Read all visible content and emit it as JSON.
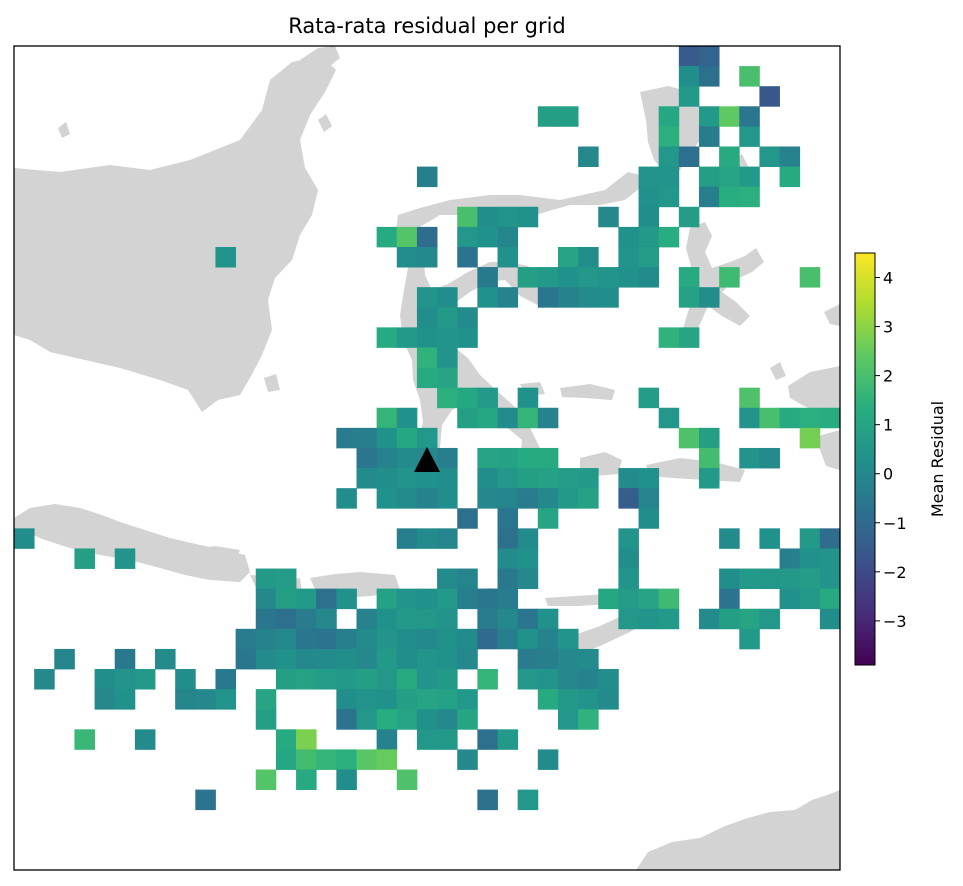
{
  "map": {
    "title": "Rata-rata residual per grid",
    "land_color": "#d3d3d3",
    "marker": "black-triangle",
    "colormap": "viridis"
  },
  "colorbar": {
    "label": "Mean Residual",
    "min": -3.9,
    "max": 4.5,
    "ticks": [
      {
        "value": -3,
        "label": "−3"
      },
      {
        "value": -2,
        "label": "−2"
      },
      {
        "value": -1,
        "label": "−1"
      },
      {
        "value": 0,
        "label": "0"
      },
      {
        "value": 1,
        "label": "1"
      },
      {
        "value": 2,
        "label": "2"
      },
      {
        "value": 3,
        "label": "3"
      },
      {
        "value": 4,
        "label": "4"
      }
    ]
  },
  "grid": {
    "cols": 41,
    "rows": 41,
    "cells": [
      [
        33,
        0,
        -1.5
      ],
      [
        34,
        0,
        -1.2
      ],
      [
        33,
        1,
        0.2
      ],
      [
        34,
        1,
        -0.8
      ],
      [
        36,
        1,
        2.0
      ],
      [
        33,
        2,
        0.6
      ],
      [
        37,
        2,
        -1.6
      ],
      [
        26,
        3,
        0.8
      ],
      [
        27,
        3,
        0.8
      ],
      [
        32,
        3,
        1.1
      ],
      [
        34,
        3,
        0.6
      ],
      [
        35,
        3,
        2.4
      ],
      [
        36,
        3,
        -0.6
      ],
      [
        32,
        4,
        1.4
      ],
      [
        34,
        4,
        -0.4
      ],
      [
        36,
        4,
        0.5
      ],
      [
        28,
        5,
        0.0
      ],
      [
        32,
        5,
        0.5
      ],
      [
        33,
        5,
        -0.8
      ],
      [
        35,
        5,
        1.2
      ],
      [
        37,
        5,
        0.5
      ],
      [
        38,
        5,
        -0.2
      ],
      [
        20,
        6,
        -0.3
      ],
      [
        31,
        6,
        0.4
      ],
      [
        32,
        6,
        0.4
      ],
      [
        34,
        6,
        0.8
      ],
      [
        35,
        6,
        1.0
      ],
      [
        36,
        6,
        0.6
      ],
      [
        38,
        6,
        1.2
      ],
      [
        31,
        7,
        0.3
      ],
      [
        32,
        7,
        0.5
      ],
      [
        34,
        7,
        -0.3
      ],
      [
        35,
        7,
        1.3
      ],
      [
        36,
        7,
        1.4
      ],
      [
        22,
        8,
        2.0
      ],
      [
        23,
        8,
        0.2
      ],
      [
        24,
        8,
        0.4
      ],
      [
        25,
        8,
        0.3
      ],
      [
        29,
        8,
        0.0
      ],
      [
        31,
        8,
        0.2
      ],
      [
        33,
        8,
        0.7
      ],
      [
        18,
        9,
        1.2
      ],
      [
        19,
        9,
        2.2
      ],
      [
        20,
        9,
        -0.9
      ],
      [
        22,
        9,
        0.5
      ],
      [
        23,
        9,
        0.3
      ],
      [
        24,
        9,
        -0.1
      ],
      [
        30,
        9,
        0.3
      ],
      [
        31,
        9,
        0.6
      ],
      [
        32,
        9,
        1.3
      ],
      [
        10,
        10,
        0.4
      ],
      [
        19,
        10,
        0.2
      ],
      [
        20,
        10,
        0.0
      ],
      [
        22,
        10,
        -0.7
      ],
      [
        24,
        10,
        0.3
      ],
      [
        27,
        10,
        1.0
      ],
      [
        28,
        10,
        0.2
      ],
      [
        30,
        10,
        0.4
      ],
      [
        31,
        10,
        0.7
      ],
      [
        23,
        11,
        -0.5
      ],
      [
        25,
        11,
        0.8
      ],
      [
        26,
        11,
        0.6
      ],
      [
        27,
        11,
        0.3
      ],
      [
        28,
        11,
        0.5
      ],
      [
        29,
        11,
        0.4
      ],
      [
        30,
        11,
        0.3
      ],
      [
        31,
        11,
        0.1
      ],
      [
        33,
        11,
        1.2
      ],
      [
        35,
        11,
        1.8
      ],
      [
        39,
        11,
        2.0
      ],
      [
        20,
        12,
        0.4
      ],
      [
        21,
        12,
        0.2
      ],
      [
        23,
        12,
        0.3
      ],
      [
        24,
        12,
        -0.2
      ],
      [
        26,
        12,
        -0.6
      ],
      [
        27,
        12,
        -0.2
      ],
      [
        28,
        12,
        0.1
      ],
      [
        29,
        12,
        0.2
      ],
      [
        33,
        12,
        0.9
      ],
      [
        34,
        12,
        0.2
      ],
      [
        20,
        13,
        0.2
      ],
      [
        21,
        13,
        0.6
      ],
      [
        22,
        13,
        0.1
      ],
      [
        18,
        14,
        1.2
      ],
      [
        19,
        14,
        0.6
      ],
      [
        20,
        14,
        0.3
      ],
      [
        21,
        14,
        0.4
      ],
      [
        22,
        14,
        0.3
      ],
      [
        32,
        14,
        1.5
      ],
      [
        33,
        14,
        1.0
      ],
      [
        20,
        15,
        1.5
      ],
      [
        21,
        15,
        0.4
      ],
      [
        20,
        16,
        1.2
      ],
      [
        21,
        16,
        1.0
      ],
      [
        21,
        17,
        1.4
      ],
      [
        22,
        17,
        1.1
      ],
      [
        23,
        17,
        0.6
      ],
      [
        25,
        17,
        0.3
      ],
      [
        31,
        17,
        0.7
      ],
      [
        36,
        17,
        2.1
      ],
      [
        18,
        18,
        1.6
      ],
      [
        19,
        18,
        0.3
      ],
      [
        22,
        18,
        0.8
      ],
      [
        23,
        18,
        1.1
      ],
      [
        24,
        18,
        0.1
      ],
      [
        25,
        18,
        1.6
      ],
      [
        26,
        18,
        -0.2
      ],
      [
        32,
        18,
        0.5
      ],
      [
        36,
        18,
        0.4
      ],
      [
        37,
        18,
        2.0
      ],
      [
        38,
        18,
        1.2
      ],
      [
        39,
        18,
        1.4
      ],
      [
        40,
        18,
        1.3
      ],
      [
        16,
        19,
        -0.4
      ],
      [
        17,
        19,
        -0.3
      ],
      [
        18,
        19,
        0.3
      ],
      [
        19,
        19,
        1.1
      ],
      [
        20,
        19,
        0.5
      ],
      [
        33,
        19,
        2.1
      ],
      [
        34,
        19,
        0.8
      ],
      [
        39,
        19,
        2.7
      ],
      [
        17,
        20,
        -0.6
      ],
      [
        18,
        20,
        -0.2
      ],
      [
        19,
        20,
        0.1
      ],
      [
        20,
        20,
        0.0
      ],
      [
        21,
        20,
        -0.3
      ],
      [
        23,
        20,
        1.0
      ],
      [
        24,
        20,
        0.9
      ],
      [
        25,
        20,
        1.2
      ],
      [
        26,
        20,
        1.2
      ],
      [
        34,
        20,
        1.9
      ],
      [
        36,
        20,
        0.4
      ],
      [
        37,
        20,
        0.1
      ],
      [
        17,
        21,
        0.1
      ],
      [
        18,
        21,
        0.2
      ],
      [
        19,
        21,
        0.4
      ],
      [
        20,
        21,
        0.3
      ],
      [
        21,
        21,
        0.2
      ],
      [
        23,
        21,
        0.2
      ],
      [
        24,
        21,
        0.5
      ],
      [
        25,
        21,
        0.8
      ],
      [
        26,
        21,
        0.9
      ],
      [
        27,
        21,
        0.7
      ],
      [
        28,
        21,
        0.6
      ],
      [
        30,
        21,
        0.1
      ],
      [
        31,
        21,
        0.3
      ],
      [
        34,
        21,
        0.6
      ],
      [
        16,
        22,
        0.2
      ],
      [
        18,
        22,
        0.3
      ],
      [
        19,
        22,
        0.1
      ],
      [
        20,
        22,
        -0.2
      ],
      [
        21,
        22,
        0.2
      ],
      [
        23,
        22,
        0.0
      ],
      [
        24,
        22,
        -0.1
      ],
      [
        25,
        22,
        -0.4
      ],
      [
        26,
        22,
        0.0
      ],
      [
        27,
        22,
        0.6
      ],
      [
        28,
        22,
        0.9
      ],
      [
        30,
        22,
        -1.4
      ],
      [
        31,
        22,
        -0.1
      ],
      [
        22,
        23,
        -0.8
      ],
      [
        24,
        23,
        -0.6
      ],
      [
        26,
        23,
        1.0
      ],
      [
        31,
        23,
        0.2
      ],
      [
        0,
        24,
        0.2
      ],
      [
        19,
        24,
        -0.3
      ],
      [
        20,
        24,
        0.1
      ],
      [
        21,
        24,
        -0.1
      ],
      [
        24,
        24,
        -0.8
      ],
      [
        25,
        24,
        0.1
      ],
      [
        30,
        24,
        0.4
      ],
      [
        35,
        24,
        0.1
      ],
      [
        37,
        24,
        0.3
      ],
      [
        39,
        24,
        0.6
      ],
      [
        40,
        24,
        -0.9
      ],
      [
        3,
        25,
        0.8
      ],
      [
        5,
        25,
        0.4
      ],
      [
        24,
        25,
        0.1
      ],
      [
        25,
        25,
        0.3
      ],
      [
        30,
        25,
        0.2
      ],
      [
        38,
        25,
        -0.3
      ],
      [
        39,
        25,
        0.3
      ],
      [
        40,
        25,
        0.4
      ],
      [
        12,
        26,
        0.6
      ],
      [
        13,
        26,
        0.7
      ],
      [
        21,
        26,
        0.1
      ],
      [
        22,
        26,
        -0.1
      ],
      [
        24,
        26,
        -0.5
      ],
      [
        25,
        26,
        0.0
      ],
      [
        30,
        26,
        0.4
      ],
      [
        35,
        26,
        0.2
      ],
      [
        36,
        26,
        0.6
      ],
      [
        37,
        26,
        0.5
      ],
      [
        38,
        26,
        0.6
      ],
      [
        39,
        26,
        0.7
      ],
      [
        40,
        26,
        0.4
      ],
      [
        12,
        27,
        0.0
      ],
      [
        13,
        27,
        0.8
      ],
      [
        14,
        27,
        0.6
      ],
      [
        15,
        27,
        -0.8
      ],
      [
        16,
        27,
        0.3
      ],
      [
        18,
        27,
        0.9
      ],
      [
        19,
        27,
        0.4
      ],
      [
        20,
        27,
        0.3
      ],
      [
        21,
        27,
        0.6
      ],
      [
        22,
        27,
        -0.3
      ],
      [
        23,
        27,
        -0.6
      ],
      [
        24,
        27,
        -0.4
      ],
      [
        29,
        27,
        1.1
      ],
      [
        30,
        27,
        0.7
      ],
      [
        31,
        27,
        1.0
      ],
      [
        32,
        27,
        1.8
      ],
      [
        35,
        27,
        -0.7
      ],
      [
        38,
        27,
        0.3
      ],
      [
        39,
        27,
        0.6
      ],
      [
        40,
        27,
        1.2
      ],
      [
        12,
        28,
        -0.6
      ],
      [
        13,
        28,
        -0.8
      ],
      [
        14,
        28,
        -0.4
      ],
      [
        15,
        28,
        0.0
      ],
      [
        17,
        28,
        -0.2
      ],
      [
        18,
        28,
        0.3
      ],
      [
        19,
        28,
        0.6
      ],
      [
        20,
        28,
        0.5
      ],
      [
        21,
        28,
        0.4
      ],
      [
        23,
        28,
        -0.4
      ],
      [
        24,
        28,
        0.0
      ],
      [
        25,
        28,
        -0.6
      ],
      [
        26,
        28,
        0.3
      ],
      [
        30,
        28,
        0.5
      ],
      [
        31,
        28,
        0.4
      ],
      [
        32,
        28,
        0.6
      ],
      [
        34,
        28,
        0.1
      ],
      [
        35,
        28,
        0.8
      ],
      [
        36,
        28,
        1.0
      ],
      [
        37,
        28,
        0.5
      ],
      [
        40,
        28,
        0.2
      ],
      [
        11,
        29,
        -0.4
      ],
      [
        12,
        29,
        -0.2
      ],
      [
        13,
        29,
        0.0
      ],
      [
        14,
        29,
        -0.6
      ],
      [
        15,
        29,
        -0.7
      ],
      [
        16,
        29,
        -0.3
      ],
      [
        17,
        29,
        0.1
      ],
      [
        18,
        29,
        0.4
      ],
      [
        19,
        29,
        0.2
      ],
      [
        20,
        29,
        0.0
      ],
      [
        21,
        29,
        0.3
      ],
      [
        22,
        29,
        0.1
      ],
      [
        23,
        29,
        -1.0
      ],
      [
        24,
        29,
        -0.3
      ],
      [
        25,
        29,
        0.3
      ],
      [
        26,
        29,
        -0.2
      ],
      [
        27,
        29,
        0.4
      ],
      [
        36,
        29,
        0.6
      ],
      [
        2,
        30,
        -0.1
      ],
      [
        5,
        30,
        -0.5
      ],
      [
        7,
        30,
        0.1
      ],
      [
        11,
        30,
        -0.6
      ],
      [
        12,
        30,
        0.1
      ],
      [
        13,
        30,
        0.3
      ],
      [
        14,
        30,
        0.0
      ],
      [
        15,
        30,
        0.1
      ],
      [
        16,
        30,
        0.2
      ],
      [
        17,
        30,
        0.0
      ],
      [
        18,
        30,
        0.6
      ],
      [
        19,
        30,
        0.2
      ],
      [
        20,
        30,
        0.4
      ],
      [
        21,
        30,
        0.3
      ],
      [
        22,
        30,
        0.0
      ],
      [
        25,
        30,
        -0.4
      ],
      [
        26,
        30,
        -0.3
      ],
      [
        27,
        30,
        0.0
      ],
      [
        28,
        30,
        0.1
      ],
      [
        1,
        31,
        0.0
      ],
      [
        4,
        31,
        0.2
      ],
      [
        5,
        31,
        0.4
      ],
      [
        6,
        31,
        0.6
      ],
      [
        8,
        31,
        0.2
      ],
      [
        10,
        31,
        -0.5
      ],
      [
        13,
        31,
        0.8
      ],
      [
        14,
        31,
        0.9
      ],
      [
        15,
        31,
        0.7
      ],
      [
        16,
        31,
        0.6
      ],
      [
        17,
        31,
        0.8
      ],
      [
        18,
        31,
        0.5
      ],
      [
        19,
        31,
        1.2
      ],
      [
        20,
        31,
        0.4
      ],
      [
        21,
        31,
        0.6
      ],
      [
        23,
        31,
        1.6
      ],
      [
        25,
        31,
        0.5
      ],
      [
        26,
        31,
        0.4
      ],
      [
        27,
        31,
        0.0
      ],
      [
        28,
        31,
        -0.2
      ],
      [
        29,
        31,
        0.2
      ],
      [
        4,
        32,
        0.0
      ],
      [
        5,
        32,
        0.3
      ],
      [
        8,
        32,
        -0.1
      ],
      [
        9,
        32,
        0.0
      ],
      [
        10,
        32,
        0.4
      ],
      [
        12,
        32,
        1.0
      ],
      [
        16,
        32,
        0.2
      ],
      [
        17,
        32,
        0.4
      ],
      [
        18,
        32,
        0.3
      ],
      [
        19,
        32,
        0.8
      ],
      [
        20,
        32,
        1.0
      ],
      [
        21,
        32,
        0.9
      ],
      [
        22,
        32,
        0.5
      ],
      [
        26,
        32,
        1.2
      ],
      [
        27,
        32,
        0.6
      ],
      [
        28,
        32,
        0.4
      ],
      [
        29,
        32,
        0.1
      ],
      [
        12,
        33,
        0.8
      ],
      [
        16,
        33,
        -0.7
      ],
      [
        17,
        33,
        0.5
      ],
      [
        18,
        33,
        1.3
      ],
      [
        19,
        33,
        1.0
      ],
      [
        20,
        33,
        0.3
      ],
      [
        21,
        33,
        0.0
      ],
      [
        22,
        33,
        1.0
      ],
      [
        27,
        33,
        0.5
      ],
      [
        28,
        33,
        1.5
      ],
      [
        3,
        34,
        1.7
      ],
      [
        6,
        34,
        0.1
      ],
      [
        13,
        34,
        1.2
      ],
      [
        14,
        34,
        2.8
      ],
      [
        18,
        34,
        -0.2
      ],
      [
        20,
        34,
        0.5
      ],
      [
        21,
        34,
        0.6
      ],
      [
        23,
        34,
        -0.8
      ],
      [
        24,
        34,
        0.6
      ],
      [
        13,
        35,
        1.1
      ],
      [
        14,
        35,
        1.9
      ],
      [
        15,
        35,
        1.6
      ],
      [
        16,
        35,
        1.4
      ],
      [
        17,
        35,
        2.3
      ],
      [
        18,
        35,
        2.5
      ],
      [
        22,
        35,
        0.0
      ],
      [
        26,
        35,
        0.1
      ],
      [
        12,
        36,
        2.2
      ],
      [
        14,
        36,
        1.2
      ],
      [
        16,
        36,
        0.2
      ],
      [
        19,
        36,
        2.1
      ],
      [
        9,
        37,
        -0.7
      ],
      [
        23,
        37,
        -0.8
      ],
      [
        25,
        37,
        0.5
      ]
    ]
  }
}
